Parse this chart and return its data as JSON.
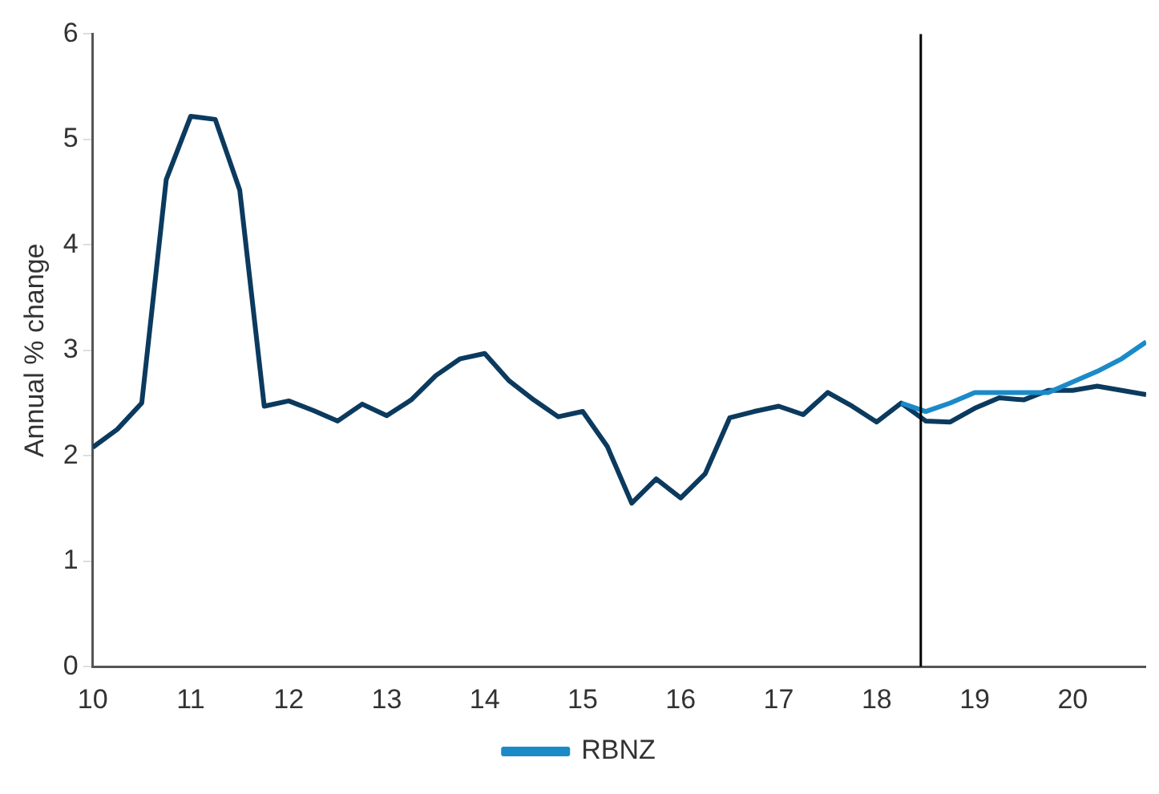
{
  "chart_data": {
    "type": "line",
    "ylabel": "Annual % change",
    "xlim": [
      10,
      20.75
    ],
    "xticks": [
      10,
      11,
      12,
      13,
      14,
      15,
      16,
      17,
      18,
      19,
      20
    ],
    "ylim": [
      0,
      6
    ],
    "yticks": [
      0,
      1,
      2,
      3,
      4,
      5,
      6
    ],
    "grid": false,
    "legend": "bottom",
    "marker": "none",
    "line_style": "solid",
    "ref_lines": [
      {
        "axis": "x",
        "value": 18.45,
        "color": "#000000"
      }
    ],
    "series": [
      {
        "name": "RBNZ",
        "color": "#1b8ac9",
        "x": [
          18.25,
          18.5,
          18.75,
          19,
          19.25,
          19.5,
          19.75,
          20,
          20.25,
          20.5,
          20.75
        ],
        "values": [
          2.5,
          2.42,
          2.5,
          2.6,
          2.6,
          2.6,
          2.6,
          2.7,
          2.8,
          2.92,
          3.08
        ]
      },
      {
        "color": "#0b3a5e",
        "x": [
          10,
          10.25,
          10.5,
          10.75,
          11,
          11.25,
          11.5,
          11.75,
          12,
          12.25,
          12.5,
          12.75,
          13,
          13.25,
          13.5,
          13.75,
          14,
          14.25,
          14.5,
          14.75,
          15,
          15.25,
          15.5,
          15.75,
          16,
          16.25,
          16.5,
          16.75,
          17,
          17.25,
          17.5,
          17.75,
          18,
          18.25,
          18.5,
          18.75,
          19,
          19.25,
          19.5,
          19.75,
          20,
          20.25,
          20.5,
          20.75
        ],
        "values": [
          2.08,
          2.25,
          2.5,
          4.62,
          5.22,
          5.19,
          4.52,
          2.47,
          2.52,
          2.43,
          2.33,
          2.49,
          2.38,
          2.53,
          2.76,
          2.92,
          2.97,
          2.71,
          2.53,
          2.37,
          2.42,
          2.09,
          1.55,
          1.78,
          1.6,
          1.83,
          2.36,
          2.42,
          2.47,
          2.39,
          2.6,
          2.47,
          2.32,
          2.5,
          2.33,
          2.32,
          2.45,
          2.55,
          2.53,
          2.62,
          2.62,
          2.66,
          2.62,
          2.58
        ]
      }
    ]
  }
}
